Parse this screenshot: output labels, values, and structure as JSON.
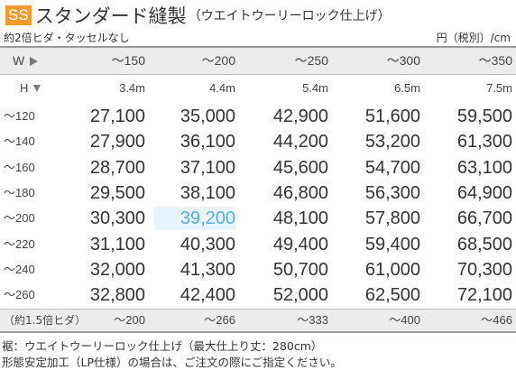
{
  "header": {
    "badge": "SS",
    "title": "スタンダード縫製",
    "subtitle": "（ウエイトウーリーロック仕上げ）"
  },
  "notes": {
    "left": "約2倍ヒダ・タッセルなし",
    "right": "円（税別）/cm"
  },
  "table": {
    "width_label": "W",
    "height_label": "H",
    "columns": [
      "～150",
      "～200",
      "～250",
      "～300",
      "～350"
    ],
    "fabric_widths": [
      "3.4m",
      "4.4m",
      "5.4m",
      "6.5m",
      "7.5m"
    ],
    "rows": [
      {
        "label": "～120",
        "prices": [
          "27,100",
          "35,000",
          "42,900",
          "51,600",
          "59,500"
        ]
      },
      {
        "label": "～140",
        "prices": [
          "27,900",
          "36,100",
          "44,200",
          "53,200",
          "61,300"
        ]
      },
      {
        "label": "～160",
        "prices": [
          "28,700",
          "37,100",
          "45,600",
          "54,700",
          "63,100"
        ]
      },
      {
        "label": "～180",
        "prices": [
          "29,500",
          "38,100",
          "46,800",
          "56,300",
          "64,900"
        ]
      },
      {
        "label": "～200",
        "prices": [
          "30,300",
          "39,200",
          "48,100",
          "57,800",
          "66,700"
        ]
      },
      {
        "label": "～220",
        "prices": [
          "31,100",
          "40,300",
          "49,400",
          "59,400",
          "68,500"
        ]
      },
      {
        "label": "～240",
        "prices": [
          "32,000",
          "41,300",
          "50,700",
          "61,000",
          "70,300"
        ]
      },
      {
        "label": "～260",
        "prices": [
          "32,800",
          "42,400",
          "52,000",
          "62,500",
          "72,100"
        ]
      }
    ],
    "highlight": {
      "row": 4,
      "col": 1
    },
    "footer_label": "（約1.5倍ヒダ）",
    "footer_values": [
      "～200",
      "～266",
      "～333",
      "～400",
      "～466"
    ]
  },
  "bottom_notes": [
    "裾：ウエイトウーリーロック仕上げ（最大仕上り丈：280cm）",
    "形態安定加工（LP仕様）の場合は、ご注文の際にご指定ください。"
  ],
  "colors": {
    "badge": "#f39c2d",
    "highlight_text": "#5aaee6",
    "band": "#ececec"
  }
}
